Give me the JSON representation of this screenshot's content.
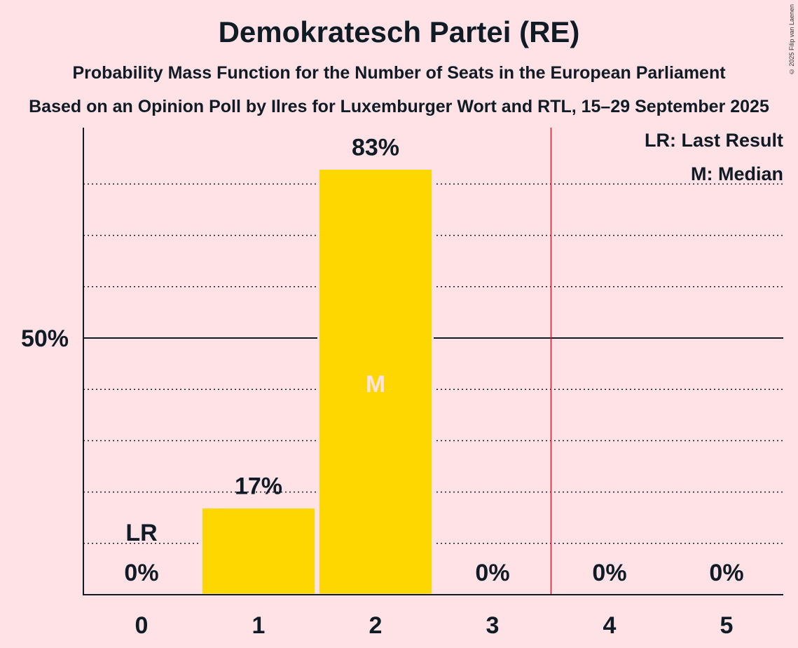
{
  "title": "Demokratesch Partei (RE)",
  "subtitle1": "Probability Mass Function for the Number of Seats in the European Parliament",
  "subtitle2": "Based on an Opinion Poll by Ilres for Luxemburger Wort and RTL, 15–29 September 2025",
  "copyright": "© 2025 Filip van Laenen",
  "legend": {
    "last_result": "LR: Last Result",
    "median": "M: Median"
  },
  "colors": {
    "background": "#FFE2E6",
    "bar": "#FFD700",
    "last_result_line": "#E0101F",
    "median_label": "#FFE2E6"
  },
  "chart_data": {
    "type": "bar",
    "categories": [
      "0",
      "1",
      "2",
      "3",
      "4",
      "5"
    ],
    "values": [
      0,
      17,
      83,
      0,
      0,
      0
    ],
    "value_labels": [
      "0%",
      "17%",
      "83%",
      "0%",
      "0%",
      "0%"
    ],
    "ylim": [
      0,
      100
    ],
    "y_tick_labels": [
      {
        "value": 50,
        "label": "50%"
      }
    ],
    "dotted_gridlines": [
      10,
      20,
      30,
      40,
      60,
      70,
      80
    ],
    "last_result": {
      "category": "0",
      "label": "LR"
    },
    "median": {
      "category": "2",
      "label": "M"
    },
    "majority_line_between": [
      "3",
      "4"
    ]
  }
}
